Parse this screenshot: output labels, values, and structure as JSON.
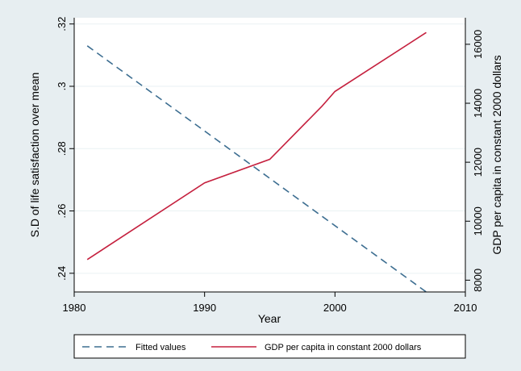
{
  "chart_data": {
    "type": "line",
    "title": "",
    "xlabel": "Year",
    "ylabel_left": "S.D of life satisfaction over mean",
    "ylabel_right": "GDP per capita in constant 2000 dollars",
    "xlim": [
      1980,
      2010
    ],
    "ylim_left": [
      0.234,
      0.322
    ],
    "ylim_right": [
      7600,
      16900
    ],
    "x_ticks": [
      1980,
      1990,
      2000,
      2010
    ],
    "y_left_ticks": [
      0.24,
      0.26,
      0.28,
      0.3,
      0.32
    ],
    "y_left_tick_labels": [
      ".24",
      ".26",
      ".28",
      ".3",
      ".32"
    ],
    "y_right_ticks": [
      8000,
      10000,
      12000,
      14000,
      16000
    ],
    "y_right_tick_labels": [
      "8000",
      "10000",
      "12000",
      "14000",
      "16000"
    ],
    "grid": true,
    "legend_position": "bottom",
    "series": [
      {
        "name": "Fitted values",
        "axis": "left",
        "style": "dashed",
        "color": "#3d6e91",
        "x": [
          1981,
          2007
        ],
        "y": [
          0.313,
          0.234
        ]
      },
      {
        "name": "GDP per capita in constant 2000 dollars",
        "axis": "right",
        "style": "solid",
        "color": "#c5213f",
        "x": [
          1981,
          1990,
          1995,
          1999,
          2000,
          2007
        ],
        "y": [
          8700,
          11300,
          12100,
          13900,
          14400,
          16400
        ]
      }
    ]
  }
}
